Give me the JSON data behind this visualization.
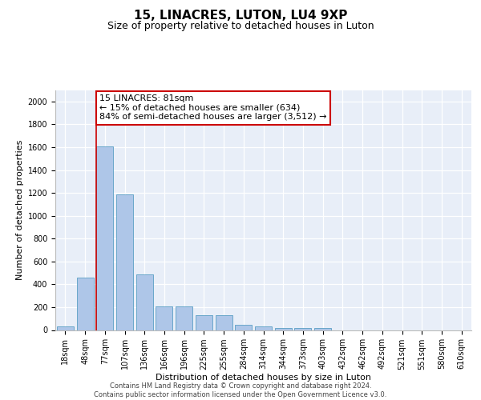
{
  "title": "15, LINACRES, LUTON, LU4 9XP",
  "subtitle": "Size of property relative to detached houses in Luton",
  "xlabel": "Distribution of detached houses by size in Luton",
  "ylabel": "Number of detached properties",
  "categories": [
    "18sqm",
    "48sqm",
    "77sqm",
    "107sqm",
    "136sqm",
    "166sqm",
    "196sqm",
    "225sqm",
    "255sqm",
    "284sqm",
    "314sqm",
    "344sqm",
    "373sqm",
    "403sqm",
    "432sqm",
    "462sqm",
    "492sqm",
    "521sqm",
    "551sqm",
    "580sqm",
    "610sqm"
  ],
  "values": [
    30,
    460,
    1610,
    1190,
    490,
    210,
    210,
    130,
    130,
    45,
    30,
    20,
    20,
    15,
    0,
    0,
    0,
    0,
    0,
    0,
    0
  ],
  "bar_color": "#aec6e8",
  "bar_edgecolor": "#5a9fc5",
  "background_color": "#e8eef8",
  "vline_x": 1.575,
  "vline_color": "#cc0000",
  "annotation_line1": "15 LINACRES: 81sqm",
  "annotation_line2": "← 15% of detached houses are smaller (634)",
  "annotation_line3": "84% of semi-detached houses are larger (3,512) →",
  "annotation_box_color": "#ffffff",
  "annotation_box_edgecolor": "#cc0000",
  "ylim": [
    0,
    2100
  ],
  "yticks": [
    0,
    200,
    400,
    600,
    800,
    1000,
    1200,
    1400,
    1600,
    1800,
    2000
  ],
  "footer_text": "Contains HM Land Registry data © Crown copyright and database right 2024.\nContains public sector information licensed under the Open Government Licence v3.0.",
  "title_fontsize": 11,
  "subtitle_fontsize": 9,
  "tick_fontsize": 7,
  "ylabel_fontsize": 8,
  "xlabel_fontsize": 8,
  "annotation_fontsize": 8
}
